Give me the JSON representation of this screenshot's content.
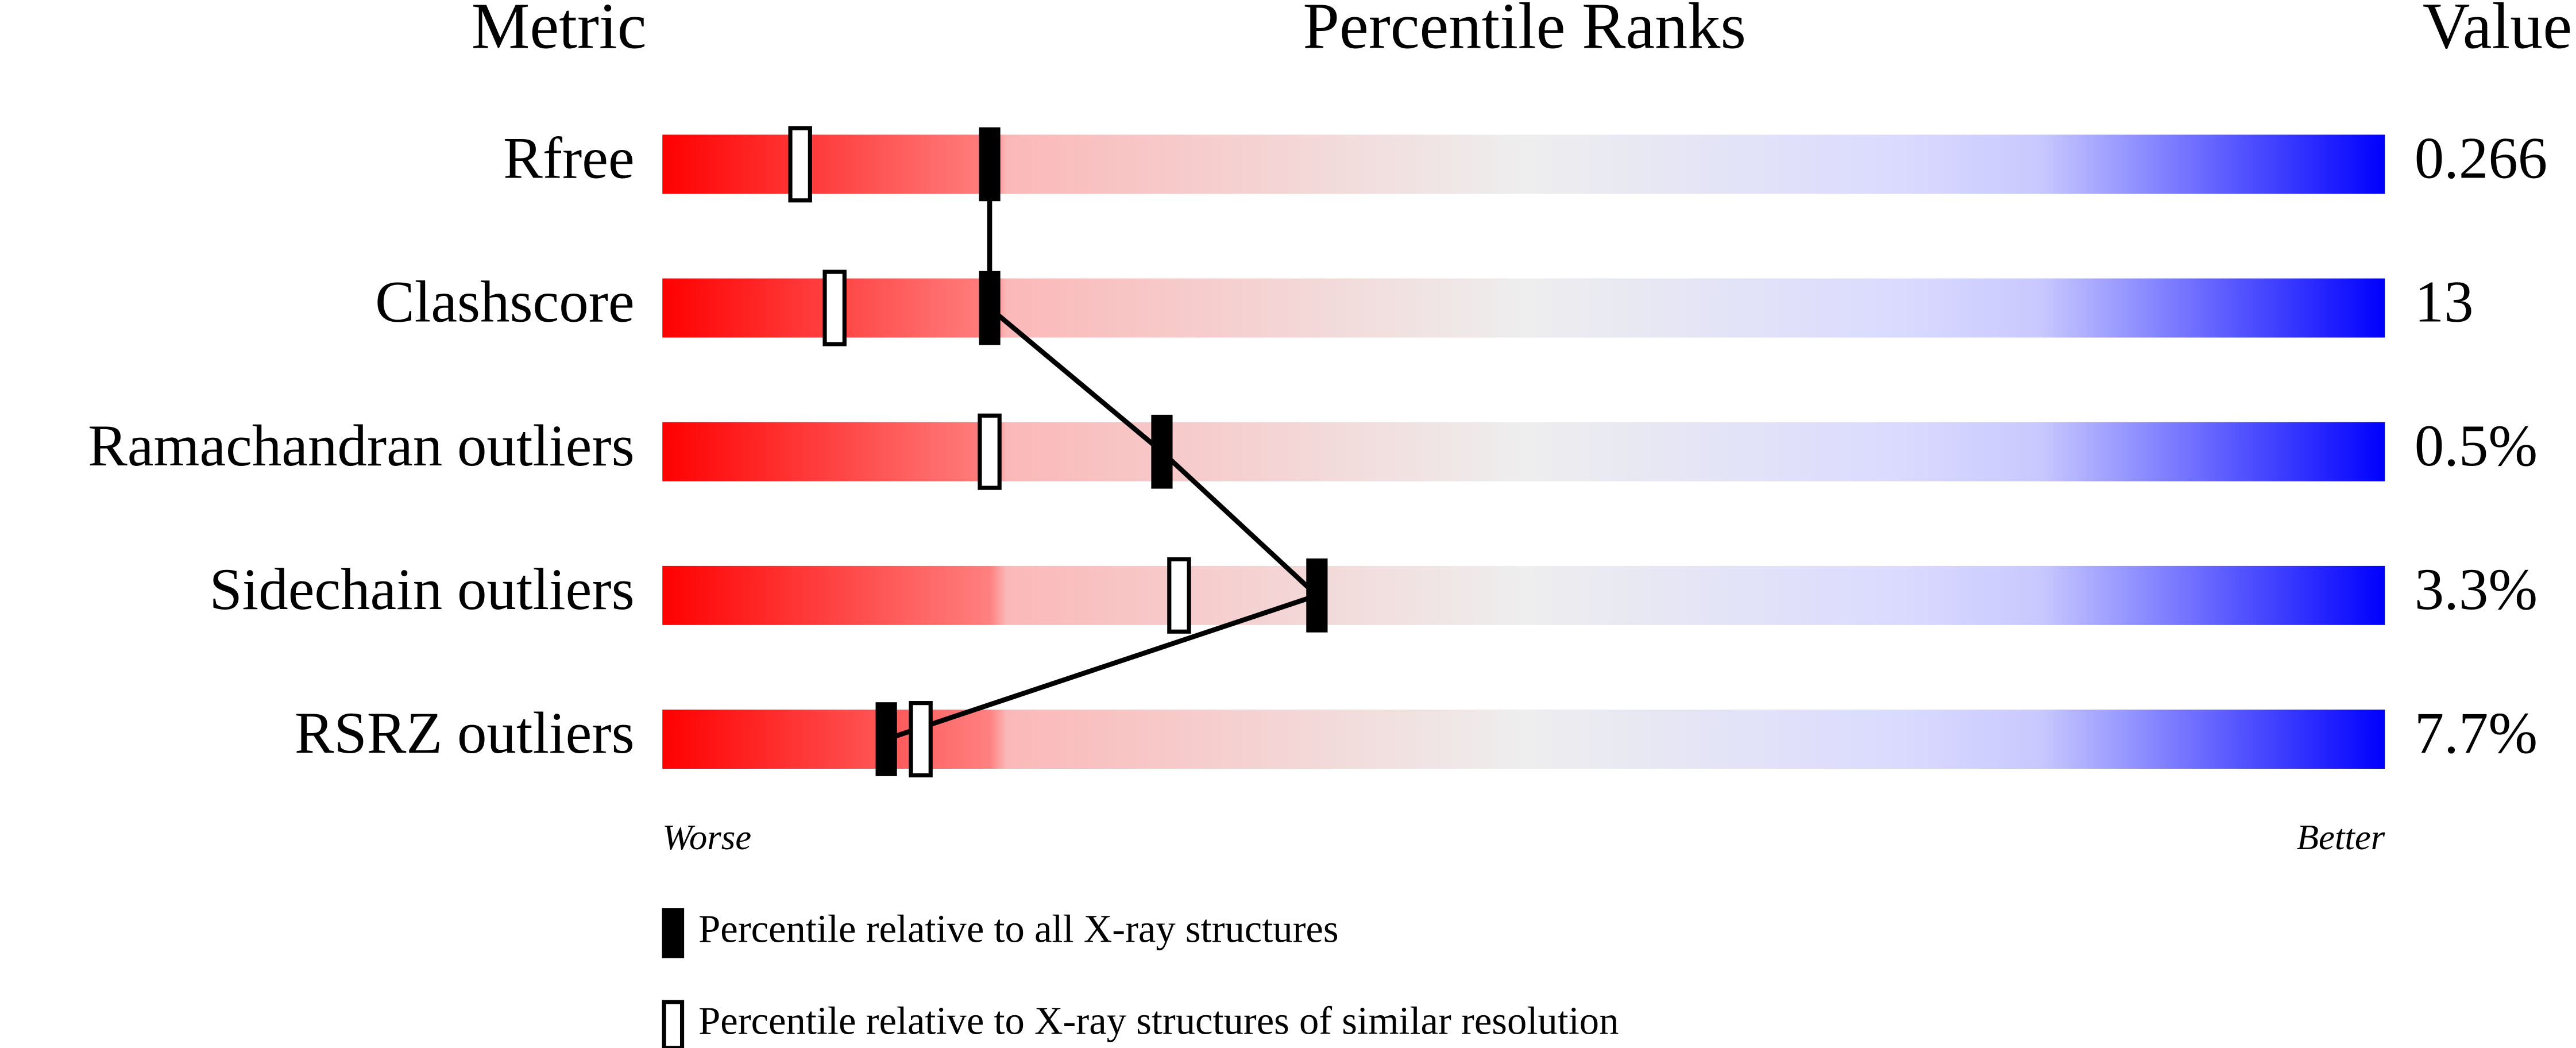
{
  "chart_data": {
    "type": "percentile",
    "headers": [
      "Metric",
      "Percentile Ranks",
      "Value"
    ],
    "categories": [
      "Rfree",
      "Clashscore",
      "Ramachandran outliers",
      "Sidechain outliers",
      "RSRZ outliers"
    ],
    "value_column": [
      "0.266",
      "13",
      "0.5%",
      "3.3%",
      "7.7%"
    ],
    "series": [
      {
        "name": "Percentile relative to all X-ray structures",
        "color": "#000000",
        "values": [
          19,
          19,
          29,
          38,
          13
        ]
      },
      {
        "name": "Percentile relative to X-ray structures of similar resolution",
        "color": "#ffffff",
        "values": [
          8,
          10,
          19,
          30,
          15
        ]
      }
    ],
    "axis_ends": [
      "Worse",
      "Better"
    ],
    "xlim": [
      0,
      100
    ]
  }
}
